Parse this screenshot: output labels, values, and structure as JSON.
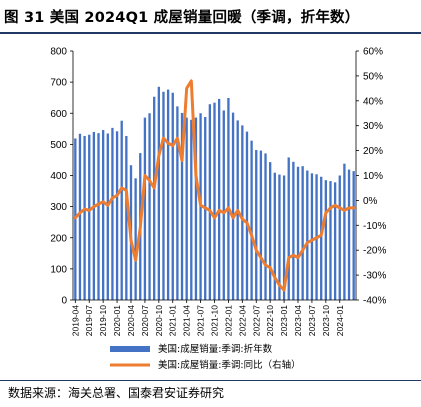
{
  "header": {
    "title": "图 31 美国 2024Q1 成屋销量回暖（季调，折年数）"
  },
  "footer": {
    "source": "数据来源：海关总署、国泰君安证券研究"
  },
  "chart_data": {
    "type": "bar+line",
    "x": [
      "2019-04",
      "2019-05",
      "2019-06",
      "2019-07",
      "2019-08",
      "2019-09",
      "2019-10",
      "2019-11",
      "2019-12",
      "2020-01",
      "2020-02",
      "2020-03",
      "2020-04",
      "2020-05",
      "2020-06",
      "2020-07",
      "2020-08",
      "2020-09",
      "2020-10",
      "2020-11",
      "2020-12",
      "2021-01",
      "2021-02",
      "2021-03",
      "2021-04",
      "2021-05",
      "2021-06",
      "2021-07",
      "2021-08",
      "2021-09",
      "2021-10",
      "2021-11",
      "2021-12",
      "2022-01",
      "2022-02",
      "2022-03",
      "2022-04",
      "2022-05",
      "2022-06",
      "2022-07",
      "2022-08",
      "2022-09",
      "2022-10",
      "2022-11",
      "2022-12",
      "2023-01",
      "2023-02",
      "2023-03",
      "2023-04",
      "2023-05",
      "2023-06",
      "2023-07",
      "2023-08",
      "2023-09",
      "2023-10",
      "2023-11",
      "2023-12",
      "2024-01",
      "2024-02",
      "2024-03",
      "2024-04"
    ],
    "x_tick_labels": [
      "2019-04",
      "2019-07",
      "2019-10",
      "2020-01",
      "2020-04",
      "2020-07",
      "2020-10",
      "2021-01",
      "2021-04",
      "2021-07",
      "2021-10",
      "2022-01",
      "2022-04",
      "2022-07",
      "2022-10",
      "2023-01",
      "2023-04",
      "2023-07",
      "2023-10",
      "2024-01"
    ],
    "series": [
      {
        "name": "美国:成屋销量:季调:折年数",
        "axis": "left",
        "kind": "bar",
        "color": "#4472c4",
        "values": [
          519,
          534,
          527,
          531,
          540,
          536,
          546,
          535,
          553,
          542,
          576,
          527,
          433,
          391,
          472,
          586,
          600,
          653,
          685,
          669,
          676,
          666,
          622,
          601,
          586,
          579,
          586,
          600,
          588,
          629,
          634,
          646,
          609,
          649,
          602,
          577,
          561,
          541,
          512,
          482,
          480,
          471,
          443,
          409,
          403,
          400,
          458,
          444,
          428,
          430,
          416,
          407,
          404,
          396,
          385,
          382,
          378,
          400,
          438,
          419,
          414
        ]
      },
      {
        "name": "美国:成屋销量:季调:同比（右轴）",
        "axis": "right",
        "kind": "line",
        "color": "#ed7d31",
        "values": [
          -7,
          -5,
          -3.5,
          -4,
          -2.5,
          -1.5,
          -0.5,
          -2,
          1,
          2,
          5,
          4,
          -16,
          -24,
          -11,
          10,
          8,
          5,
          18,
          25,
          23,
          22,
          25,
          16,
          45,
          48,
          10,
          -2,
          -3,
          -4,
          -7,
          -4,
          -5,
          -3,
          -7,
          -4,
          -7.5,
          -9,
          -14,
          -20,
          -23,
          -26,
          -27,
          -31,
          -34,
          -36,
          -23,
          -22,
          -23,
          -20,
          -17,
          -16,
          -15,
          -14,
          -5,
          -3,
          -2,
          -3,
          -4,
          -3,
          -3
        ]
      }
    ],
    "y_left": {
      "min": 0,
      "max": 800,
      "step": 100
    },
    "y_right": {
      "min": -40,
      "max": 60,
      "step": 10,
      "unit": "%"
    },
    "legend": {
      "position": "bottom"
    },
    "grid": false
  }
}
